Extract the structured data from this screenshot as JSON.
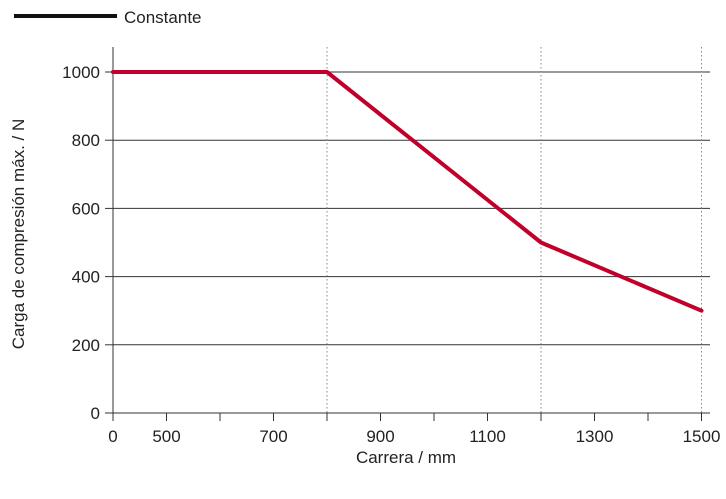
{
  "colors": {
    "series": "#c0002a",
    "legend_swatch": "#111111",
    "grid": "#333333",
    "dotted_grid": "#888888",
    "axis": "#333333",
    "text": "#222222"
  },
  "chart_data": {
    "type": "line",
    "title": "",
    "xlabel": "Carrera / mm",
    "ylabel": "Carga de compresión máx. / N",
    "x_tick_labels": [
      "0",
      "500",
      "700",
      "900",
      "1100",
      "1300",
      "1500"
    ],
    "y_tick_labels": [
      "0",
      "200",
      "400",
      "600",
      "800",
      "1000"
    ],
    "ylim": [
      0,
      1000
    ],
    "legend": {
      "placement": "top-left",
      "entries": [
        "Constante"
      ]
    },
    "series": [
      {
        "name": "Constante",
        "x": [
          0,
          800,
          1200,
          1500
        ],
        "y": [
          1000,
          1000,
          500,
          300
        ]
      }
    ],
    "grid": {
      "horizontal": true,
      "vertical_dotted_at": [
        800,
        1200,
        1500
      ]
    }
  }
}
